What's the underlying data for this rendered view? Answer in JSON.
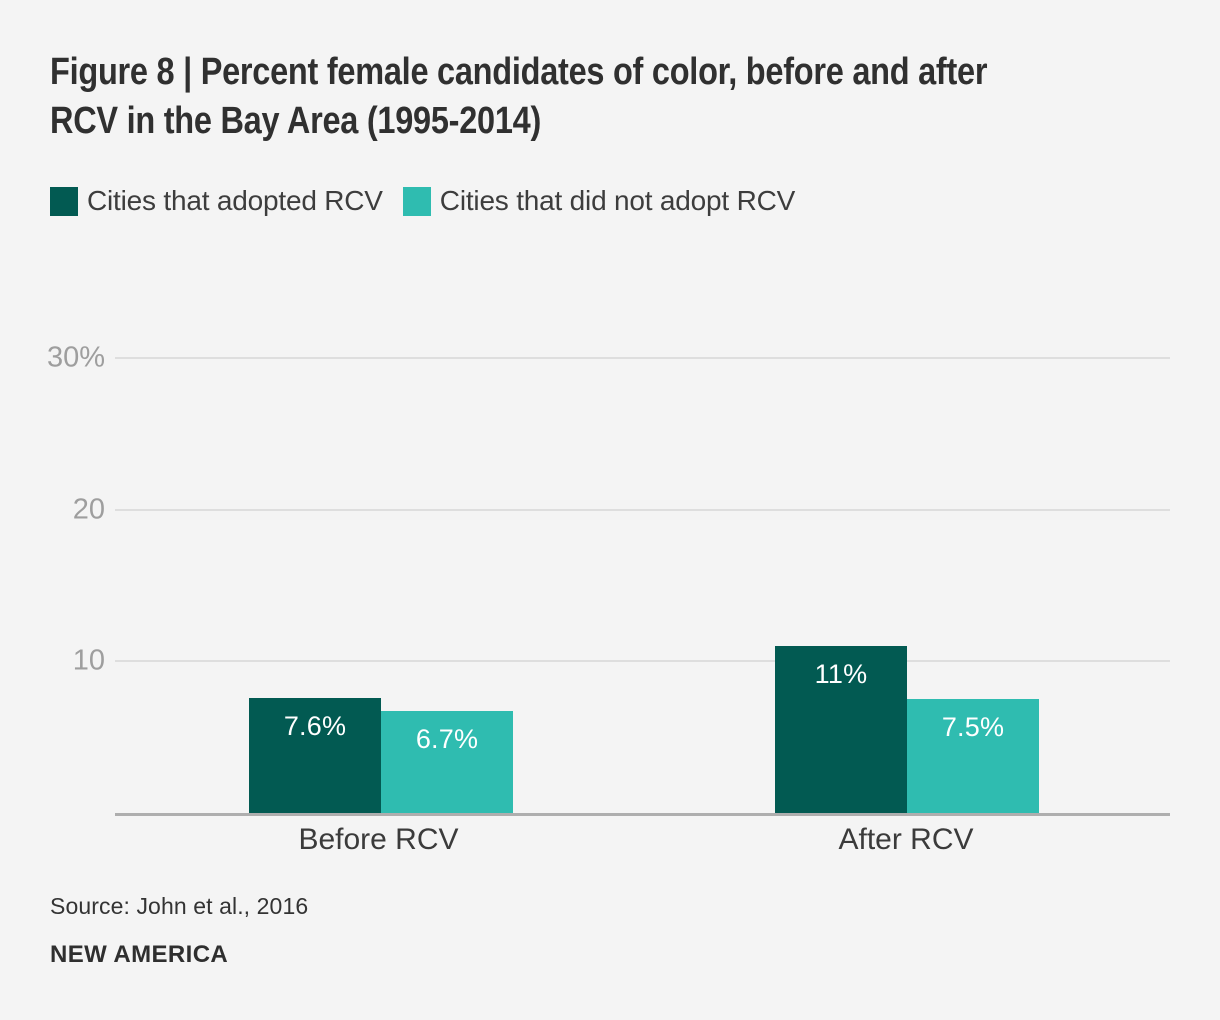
{
  "title": {
    "line1": "Figure 8 | Percent female candidates of color, before and after",
    "line2": "RCV in the Bay Area (1995-2014)"
  },
  "legend": [
    {
      "label": "Cities that adopted RCV",
      "color": "#025A52"
    },
    {
      "label": "Cities that did not adopt RCV",
      "color": "#2FBCB0"
    }
  ],
  "chart_data": {
    "type": "bar",
    "title": "Figure 8 | Percent female candidates of color, before and after RCV in the Bay Area (1995-2014)",
    "categories": [
      "Before RCV",
      "After RCV"
    ],
    "series": [
      {
        "name": "Cities that adopted RCV",
        "color": "#025A52",
        "values": [
          7.6,
          11
        ],
        "labels": [
          "7.6%",
          "11%"
        ]
      },
      {
        "name": "Cities that did not adopt RCV",
        "color": "#2FBCB0",
        "values": [
          6.7,
          7.5
        ],
        "labels": [
          "6.7%",
          "7.5%"
        ]
      }
    ],
    "xlabel": "",
    "ylabel": "",
    "ylim": [
      0,
      33
    ],
    "yticks": [
      {
        "value": 10,
        "label": "10"
      },
      {
        "value": 20,
        "label": "20"
      },
      {
        "value": 30,
        "label": "30%"
      }
    ],
    "grid": true,
    "legend_position": "top-left",
    "label_position": "inside-top",
    "background": "#f4f4f4"
  },
  "footer": {
    "source": "Source: John et al., 2016",
    "brand": "NEW AMERICA"
  },
  "colors": {
    "background": "#f4f4f4",
    "dark_series": "#025A52",
    "light_series": "#2FBCB0",
    "gridline": "#dedede",
    "axis": "#aeaeae",
    "title_text": "#303030",
    "tick_text": "#9e9e9e",
    "category_text": "#3b3b3b",
    "bar_label_text": "#ffffff"
  }
}
